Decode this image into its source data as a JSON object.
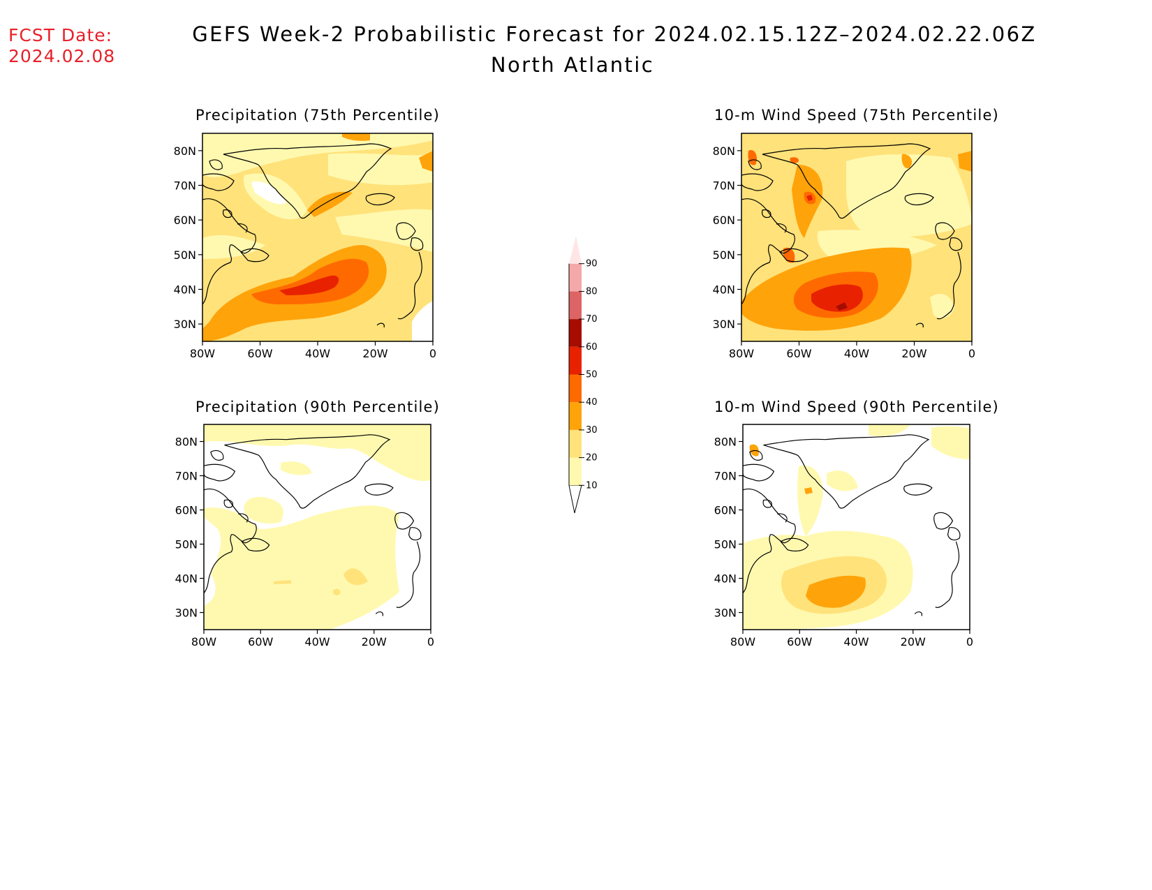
{
  "fcst_label": [
    "FCST Date:",
    "2024.02.08"
  ],
  "title_line1": "GEFS Week-2 Probabilistic Forecast for 2024.02.15.12Z–2024.02.22.06Z",
  "title_line2": "North Atlantic",
  "panels": [
    {
      "title": "Precipitation (75th Percentile)"
    },
    {
      "title": "10-m Wind Speed (75th Percentile)"
    },
    {
      "title": "Precipitation (90th Percentile)"
    },
    {
      "title": "10-m Wind Speed (90th Percentile)"
    }
  ],
  "map_extent": {
    "lon": [
      -80,
      0
    ],
    "lat": [
      25,
      85
    ]
  },
  "lat_ticks": [
    "80N",
    "70N",
    "60N",
    "50N",
    "40N",
    "30N"
  ],
  "lon_ticks": [
    "80W",
    "60W",
    "40W",
    "20W",
    "0"
  ],
  "colorbar": {
    "levels": [
      "10",
      "20",
      "30",
      "40",
      "50",
      "60",
      "70",
      "80",
      "90"
    ],
    "colors": [
      "#fff9b0",
      "#ffe27a",
      "#ffa30a",
      "#ff6a00",
      "#e82200",
      "#a60d00",
      "#dc6464",
      "#f5a8a8",
      "#ffe6e6"
    ]
  }
}
